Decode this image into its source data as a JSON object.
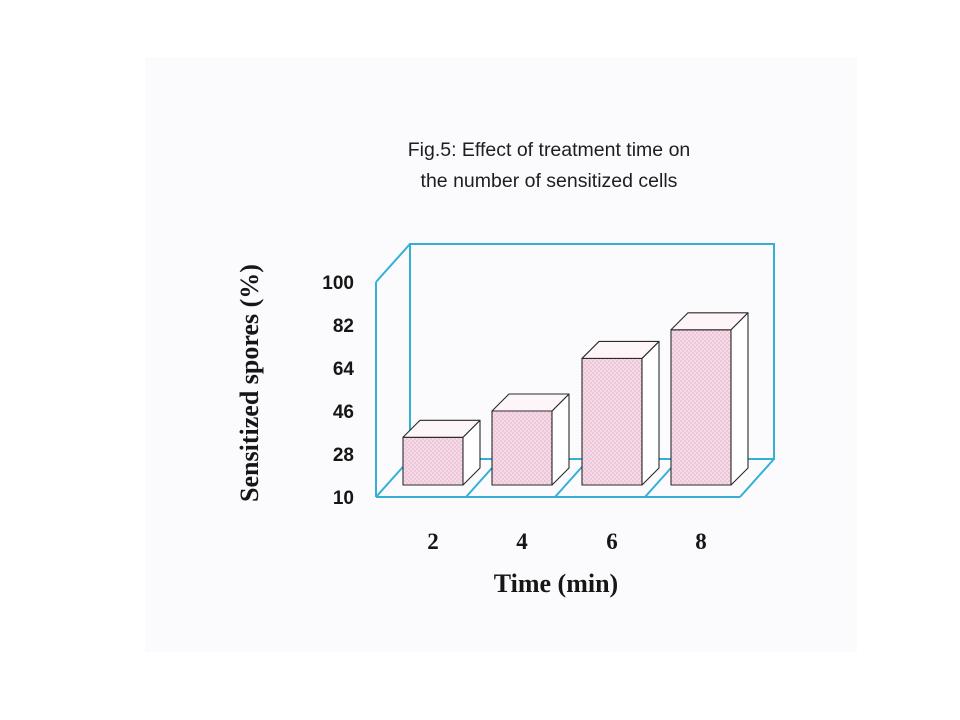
{
  "chart_data": {
    "type": "bar",
    "title": "Fig.5: Effect of treatment time on the number of sensitized cells",
    "title_lines": [
      "Fig.5: Effect of treatment time on",
      "the number of sensitized cells"
    ],
    "xlabel": "Time (min)",
    "ylabel": "Sensitized spores (%)",
    "categories": [
      "2",
      "4",
      "6",
      "8"
    ],
    "values": [
      35,
      46,
      68,
      80
    ],
    "y_ticks": [
      "100",
      "82",
      "64",
      "46",
      "28",
      "10"
    ],
    "ylim": [
      10,
      100
    ],
    "style": "3d",
    "grid": false,
    "legend": "none",
    "colors": {
      "axis": "#33b0d6",
      "bar_front": "#f6d9e6",
      "bar_top": "#fdf5f8",
      "bar_side": "#ffffff",
      "bar_outline": "#2a2a2a",
      "text": "#161616",
      "paper": "#fbfbfd"
    }
  }
}
